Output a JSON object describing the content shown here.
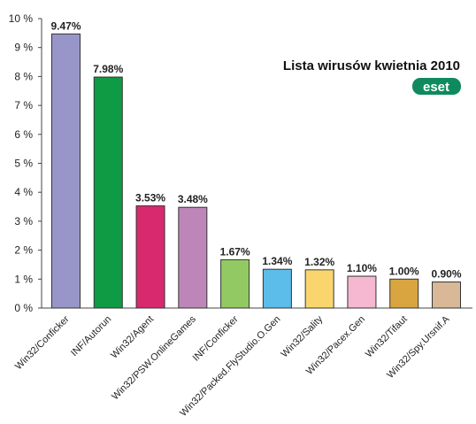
{
  "chart_data": {
    "type": "bar",
    "title": "Lista wirusów kwietnia 2010",
    "xlabel": "",
    "ylabel": "",
    "ylim": [
      0,
      10
    ],
    "grid": false,
    "y_ticks": [
      "0 %",
      "1 %",
      "2 %",
      "3 %",
      "4 %",
      "5 %",
      "6 %",
      "7 %",
      "8 %",
      "9 %",
      "10 %"
    ],
    "categories": [
      "Win32/Conficker",
      "INF/Autorun",
      "Win32/Agent",
      "Win32/PSW.OnlineGames",
      "INF/Conficker",
      "Win32/Packed.FlyStudio.O.Gen",
      "Win32/Sality",
      "Win32/Pacex.Gen",
      "Win32/Tifaut",
      "Win32/Spy.Ursnif.A"
    ],
    "values": [
      9.47,
      7.98,
      3.53,
      3.48,
      1.67,
      1.34,
      1.32,
      1.1,
      1.0,
      0.9
    ],
    "data_labels": [
      "9.47%",
      "7.98%",
      "3.53%",
      "3.48%",
      "1.67%",
      "1.34%",
      "1.32%",
      "1.10%",
      "1.00%",
      "0.90%"
    ],
    "colors": [
      "#9896c8",
      "#0f9a44",
      "#d8296f",
      "#be86b8",
      "#93c962",
      "#5cbcea",
      "#f9d66d",
      "#f5b8d0",
      "#d8a541",
      "#d8b896"
    ]
  },
  "logo": {
    "text": "eset",
    "color": "#0f8a5f"
  }
}
